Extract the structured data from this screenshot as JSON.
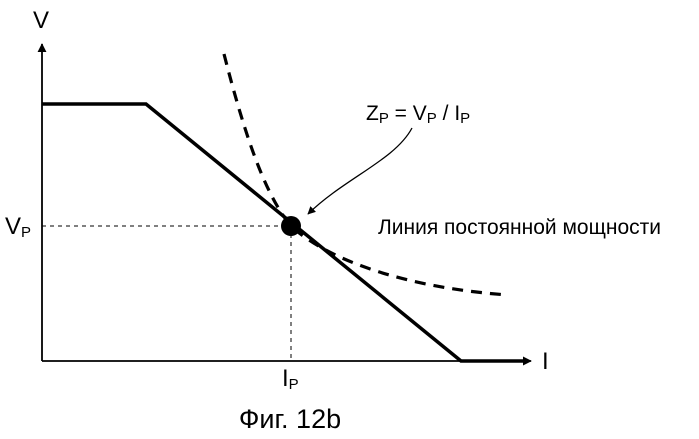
{
  "figure": {
    "caption": "Фиг. 12b",
    "y_axis_label": "V",
    "x_axis_label": "I",
    "vp_label": {
      "main": "V",
      "sub": "P"
    },
    "ip_label": {
      "main": "I",
      "sub": "P"
    },
    "impedance_label": {
      "z": "Z",
      "z_sub": "P",
      "eq": " = ",
      "v": "V",
      "v_sub": "P",
      "div": " / ",
      "i": "I",
      "i_sub": "P"
    },
    "curve_label": "Линия постоянной мощности",
    "colors": {
      "line": "#000000",
      "background": "#ffffff"
    }
  }
}
